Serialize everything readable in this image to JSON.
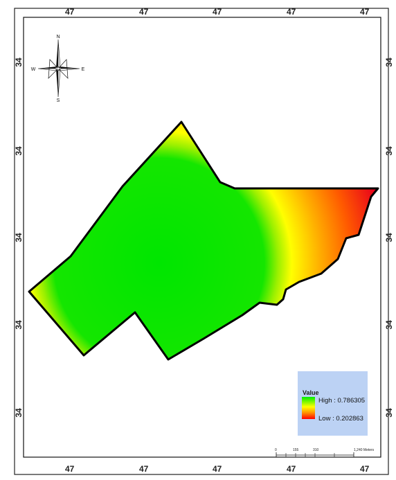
{
  "map": {
    "longitude_label": "47",
    "latitude_label": "34",
    "north_arrow": {
      "icon": "compass-rose-icon",
      "n": "N",
      "s": "S",
      "e": "E",
      "w": "W"
    },
    "legend": {
      "title": "Value",
      "high_label": "High : 0.786305",
      "low_label": "Low : 0.202863",
      "gradient_colors": [
        "#00ee00",
        "#ffff00",
        "#ff9900",
        "#ff0000"
      ],
      "background": "#bcd2f4"
    },
    "scale_bar": {
      "labels": [
        "0",
        "155",
        "310",
        "1,240 Meters"
      ]
    },
    "colors": {
      "high": "#00e600",
      "mid": "#ffff00",
      "low": "#e8001c"
    }
  }
}
